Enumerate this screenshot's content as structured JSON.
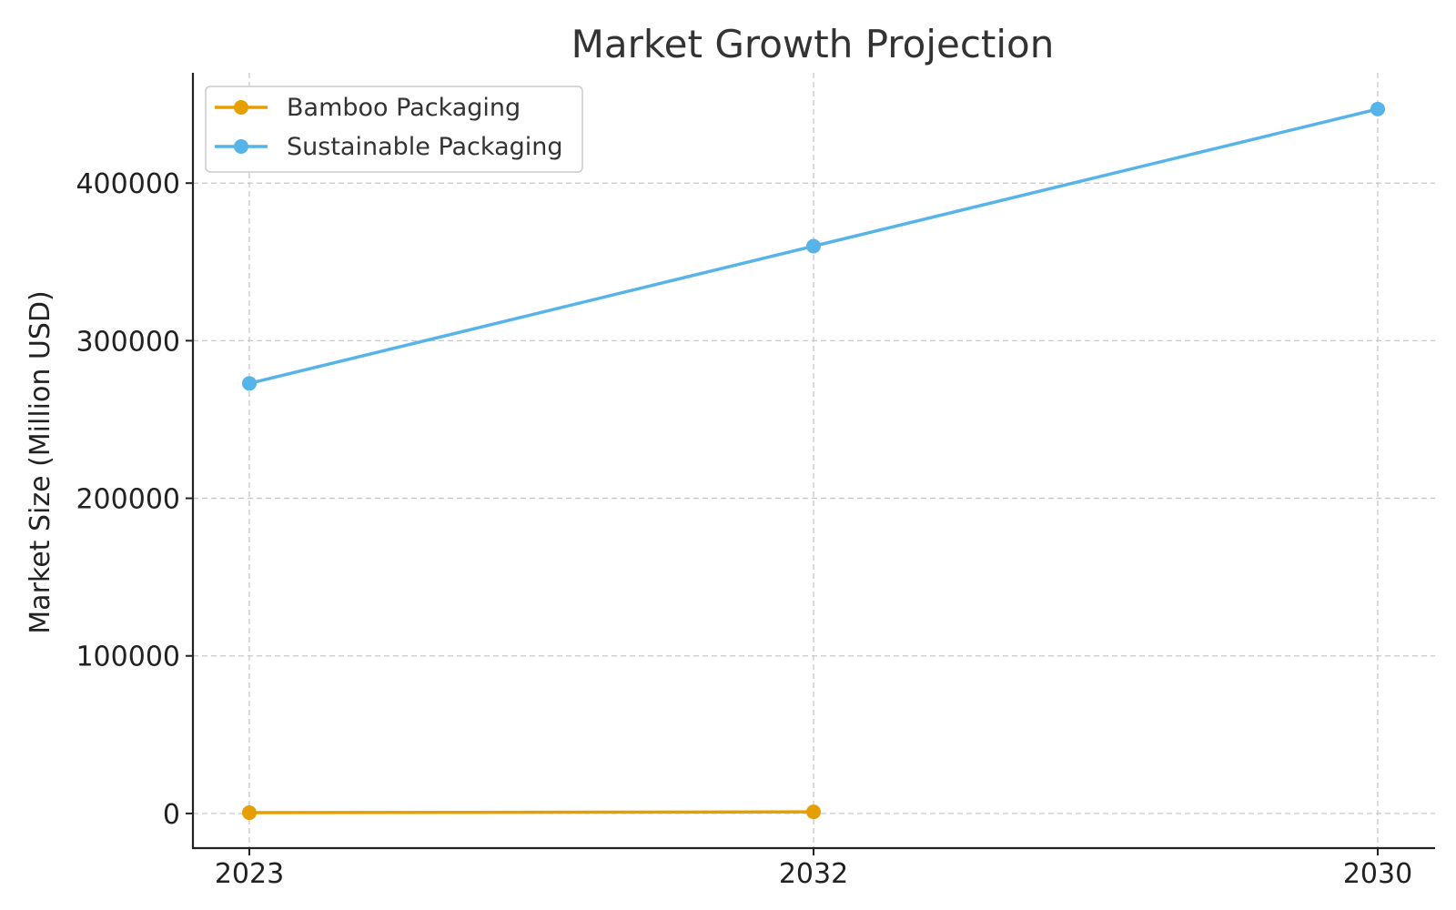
{
  "chart_data": {
    "type": "line",
    "title": "Market Growth Projection",
    "xlabel": "",
    "ylabel": "Market Size (Million USD)",
    "categories": [
      "2023",
      "2032",
      "2030"
    ],
    "ylim": [
      -22000,
      470000
    ],
    "yticks": [
      0,
      100000,
      200000,
      300000,
      400000
    ],
    "ytick_labels": [
      "0",
      "100000",
      "200000",
      "300000",
      "400000"
    ],
    "grid": true,
    "legend_position": "top-left",
    "series": [
      {
        "name": "Bamboo Packaging",
        "color": "#E69F00",
        "values": [
          500,
          1000,
          null
        ]
      },
      {
        "name": "Sustainable Packaging",
        "color": "#56B4E9",
        "values": [
          272900,
          360000,
          447000
        ]
      }
    ]
  }
}
